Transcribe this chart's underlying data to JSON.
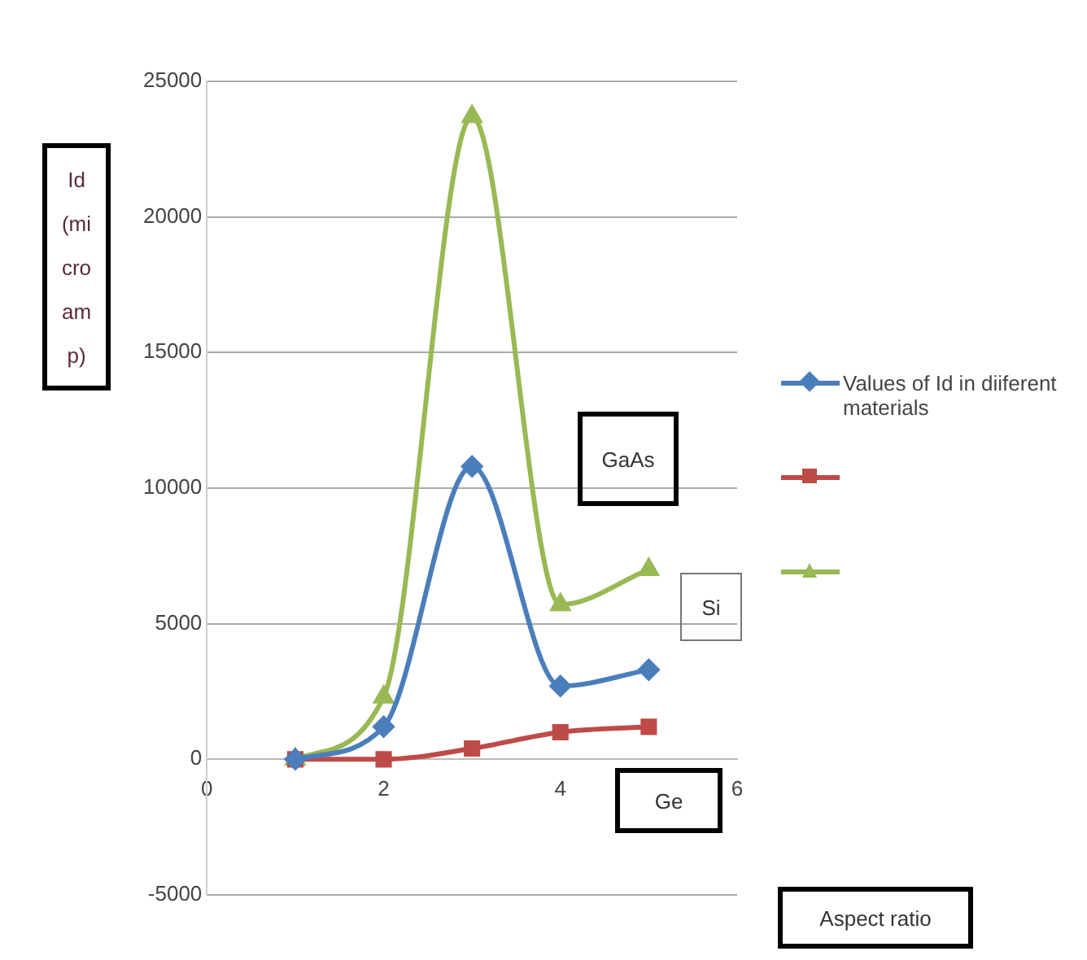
{
  "chart_data": {
    "type": "line",
    "xlabel": "Aspect ratio",
    "ylabel": "Id(microamp)",
    "x": [
      1,
      2,
      3,
      4,
      5
    ],
    "series": [
      {
        "name": "Values of Id in diiferent materials",
        "color": "#4a7ebb",
        "marker": "diamond",
        "values": [
          0,
          1200,
          10800,
          2700,
          3300
        ]
      },
      {
        "color": "#be4b48",
        "marker": "square",
        "values": [
          0,
          0,
          400,
          1000,
          1200
        ]
      },
      {
        "color": "#98b954",
        "marker": "triangle",
        "values": [
          0,
          2300,
          23700,
          5700,
          7000
        ]
      }
    ],
    "xlim": [
      0,
      6
    ],
    "xticks": [
      0,
      2,
      4,
      6
    ],
    "ylim": [
      -5000,
      25000
    ],
    "yticks": [
      -5000,
      0,
      5000,
      10000,
      15000,
      20000,
      25000
    ],
    "grid": "y",
    "legend": "right",
    "annotations": [
      "GaAs",
      "Si",
      "Ge"
    ]
  }
}
